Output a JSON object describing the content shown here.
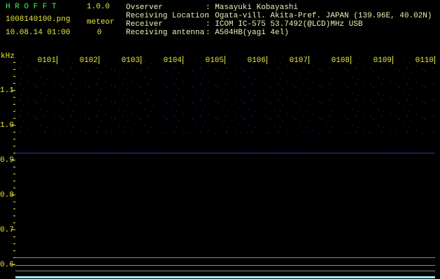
{
  "header": {
    "app_name": "H R O F F T",
    "version": "1.0.0",
    "file_name": "1008140100.png",
    "date_time": "10.08.14 01:00",
    "meteor_label": "meteor",
    "meteor_count": "0"
  },
  "info": [
    {
      "label": "Ovserver",
      "value": ": Masayuki Kobayashi"
    },
    {
      "label": "Receiving Location",
      "value": ": Ogata-vill. Akita-Pref. JAPAN (139.96E, 40.02N)"
    },
    {
      "label": "Receiver",
      "value": ": ICOM IC-575 53.7492(@LCD)MHz USB"
    },
    {
      "label": "Receiving antenna",
      "value": ": A504HB(yagi 4el)"
    }
  ],
  "spectrogram": {
    "unit": "kHz",
    "y_labels": [
      "1.1",
      "1.0",
      "0.9",
      "0.8",
      "0.7",
      "0.6"
    ],
    "time_labels": [
      "0101",
      "0102",
      "0103",
      "0104",
      "0105",
      "0106",
      "0107",
      "0108",
      "0109",
      "0110"
    ]
  }
}
